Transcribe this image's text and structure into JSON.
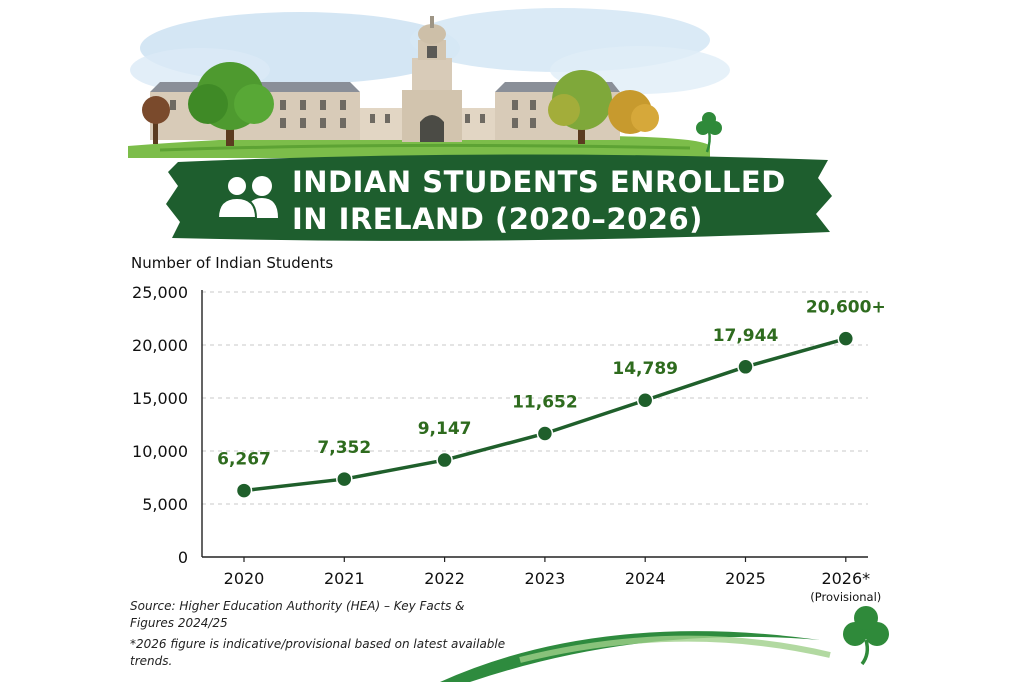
{
  "title": {
    "line1": "INDIAN STUDENTS ENROLLED",
    "line2": "IN IRELAND (2020–2026)"
  },
  "icons": {
    "header_icon": "people-icon",
    "decoration": "shamrock-icon"
  },
  "colors": {
    "brand_green": "#1e5e2e",
    "line_green": "#1f5f2b",
    "label_green": "#2e6b1e"
  },
  "chart_data": {
    "type": "line",
    "title": "INDIAN STUDENTS ENROLLED IN IRELAND (2020–2026)",
    "ylabel": "Number of Indian Students",
    "xlabel": "",
    "ylim": [
      0,
      25000
    ],
    "yticks": [
      "0",
      "5,000",
      "10,000",
      "15,000",
      "20,000",
      "25,000"
    ],
    "grid": true,
    "categories": [
      "2020",
      "2021",
      "2022",
      "2023",
      "2024",
      "2025",
      "2026*"
    ],
    "category_notes": [
      "",
      "",
      "",
      "",
      "",
      "",
      "(Provisional)"
    ],
    "values": [
      6267,
      7352,
      9147,
      11652,
      14789,
      17944,
      20600
    ],
    "data_labels": [
      "6,267",
      "7,352",
      "9,147",
      "11,652",
      "14,789",
      "17,944",
      "20,600+"
    ]
  },
  "source": "Source: Higher Education Authority (HEA) – Key Facts & Figures 2024/25",
  "footnote": "*2026 figure is indicative/provisional based on latest available trends."
}
